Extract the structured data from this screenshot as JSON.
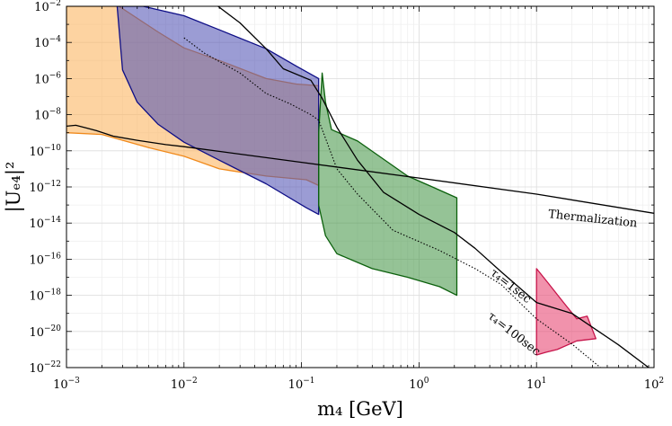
{
  "chart_data": {
    "type": "area",
    "xscale": "log",
    "yscale": "log",
    "xlim": [
      0.001,
      100
    ],
    "ylim": [
      1e-22,
      0.01
    ],
    "grid": true,
    "xlabel": "m₄ [GeV]",
    "ylabel": "|Uₑ₄|²",
    "xticks": [
      {
        "value": 0.001,
        "base": "10",
        "exp": "−3"
      },
      {
        "value": 0.01,
        "base": "10",
        "exp": "−2"
      },
      {
        "value": 0.1,
        "base": "10",
        "exp": "−1"
      },
      {
        "value": 1,
        "base": "10",
        "exp": "0"
      },
      {
        "value": 10,
        "base": "10",
        "exp": "1"
      },
      {
        "value": 100,
        "base": "10",
        "exp": "2"
      }
    ],
    "yticks": [
      {
        "value": 1e-22,
        "base": "10",
        "exp": "−22"
      },
      {
        "value": 1e-20,
        "base": "10",
        "exp": "−20"
      },
      {
        "value": 1e-18,
        "base": "10",
        "exp": "−18"
      },
      {
        "value": 1e-16,
        "base": "10",
        "exp": "−16"
      },
      {
        "value": 1e-14,
        "base": "10",
        "exp": "−14"
      },
      {
        "value": 1e-12,
        "base": "10",
        "exp": "−12"
      },
      {
        "value": 1e-10,
        "base": "10",
        "exp": "−10"
      },
      {
        "value": 1e-08,
        "base": "10",
        "exp": "−8"
      },
      {
        "value": 1e-06,
        "base": "10",
        "exp": "−6"
      },
      {
        "value": 0.0001,
        "base": "10",
        "exp": "−4"
      },
      {
        "value": 0.01,
        "base": "10",
        "exp": "−2"
      }
    ],
    "regions": [
      {
        "id": "orange",
        "fill": "#fcb562",
        "stroke": "#f08a1c",
        "opacity": 0.6,
        "points": [
          [
            0.001,
            1e-09
          ],
          [
            0.001,
            0.01
          ],
          [
            0.0028,
            0.01
          ],
          [
            0.006,
            0.00038
          ],
          [
            0.01,
            5e-05
          ],
          [
            0.02,
            1e-05
          ],
          [
            0.05,
            1e-06
          ],
          [
            0.09,
            5e-07
          ],
          [
            0.14,
            4e-07
          ],
          [
            0.14,
            1.2e-12
          ],
          [
            0.11,
            2.5e-12
          ],
          [
            0.05,
            4e-12
          ],
          [
            0.02,
            1e-11
          ],
          [
            0.01,
            5e-11
          ],
          [
            0.005,
            1.5e-10
          ],
          [
            0.002,
            8e-10
          ]
        ]
      },
      {
        "id": "blue",
        "fill": "#5255b5",
        "stroke": "#0e0e86",
        "opacity": 0.58,
        "points": [
          [
            0.0027,
            0.01
          ],
          [
            0.0045,
            0.01
          ],
          [
            0.01,
            0.003
          ],
          [
            0.02,
            0.0005
          ],
          [
            0.05,
            4.5e-05
          ],
          [
            0.09,
            5e-06
          ],
          [
            0.14,
            1e-06
          ],
          [
            0.14,
            3e-14
          ],
          [
            0.11,
            7e-14
          ],
          [
            0.05,
            1.5e-12
          ],
          [
            0.02,
            3e-11
          ],
          [
            0.01,
            3e-10
          ],
          [
            0.006,
            3e-09
          ],
          [
            0.004,
            5e-08
          ],
          [
            0.003,
            3e-06
          ]
        ]
      },
      {
        "id": "green",
        "fill": "#48984a",
        "stroke": "#0b600c",
        "opacity": 0.58,
        "points": [
          [
            0.14,
            1e-13
          ],
          [
            0.14,
            1e-09
          ],
          [
            0.15,
            2e-06
          ],
          [
            0.16,
            5e-08
          ],
          [
            0.18,
            1.5e-09
          ],
          [
            0.3,
            3.5e-10
          ],
          [
            0.8,
            4e-12
          ],
          [
            1.3,
            1e-12
          ],
          [
            2.1,
            2.5e-13
          ],
          [
            2.1,
            1e-18
          ],
          [
            1.5,
            3e-18
          ],
          [
            0.8,
            1e-17
          ],
          [
            0.4,
            3e-17
          ],
          [
            0.2,
            2e-16
          ],
          [
            0.16,
            2e-15
          ]
        ]
      },
      {
        "id": "pink",
        "fill": "#e84a74",
        "stroke": "#c7144a",
        "opacity": 0.6,
        "points": [
          [
            10,
            9e-20
          ],
          [
            10,
            3e-17
          ],
          [
            12.5,
            5e-18
          ],
          [
            17,
            4e-19
          ],
          [
            22,
            5e-20
          ],
          [
            27,
            7e-20
          ],
          [
            32,
            4e-21
          ],
          [
            22,
            3e-21
          ],
          [
            15,
            1e-21
          ],
          [
            12,
            7e-22
          ],
          [
            10,
            5e-22
          ]
        ]
      }
    ],
    "curves": [
      {
        "id": "thermalization",
        "style": "solid",
        "points": [
          [
            0.001,
            2.3e-09
          ],
          [
            0.0012,
            2.6e-09
          ],
          [
            0.0015,
            1.8e-09
          ],
          [
            0.0018,
            1.3e-09
          ],
          [
            0.0025,
            6.5e-10
          ],
          [
            0.004,
            3.8e-10
          ],
          [
            0.007,
            2.2e-10
          ],
          [
            0.01,
            1.7e-10
          ],
          [
            0.1,
            2.3e-11
          ],
          [
            1,
            3.1e-12
          ],
          [
            10,
            4e-13
          ],
          [
            100,
            3.5e-14
          ]
        ]
      },
      {
        "id": "tau-1sec",
        "style": "solid",
        "points": [
          [
            0.0195,
            0.01
          ],
          [
            0.03,
            0.0012
          ],
          [
            0.05,
            4.5e-05
          ],
          [
            0.07,
            3.5e-06
          ],
          [
            0.12,
            8e-07
          ],
          [
            0.15,
            8e-08
          ],
          [
            0.2,
            2e-09
          ],
          [
            0.3,
            3e-11
          ],
          [
            0.5,
            5e-13
          ],
          [
            1,
            3e-14
          ],
          [
            2,
            3e-15
          ],
          [
            3,
            4e-16
          ],
          [
            5,
            2e-17
          ],
          [
            10,
            4e-19
          ],
          [
            20,
            1e-19
          ],
          [
            50,
            1.8e-21
          ],
          [
            90,
            1e-22
          ]
        ]
      },
      {
        "id": "tau-100sec",
        "style": "dotted",
        "points": [
          [
            0.01,
            0.00018
          ],
          [
            0.015,
            2.5e-05
          ],
          [
            0.03,
            2e-06
          ],
          [
            0.05,
            1.5e-07
          ],
          [
            0.08,
            4e-08
          ],
          [
            0.12,
            1e-08
          ],
          [
            0.14,
            5e-09
          ],
          [
            0.16,
            5e-10
          ],
          [
            0.2,
            1e-11
          ],
          [
            0.3,
            4e-13
          ],
          [
            0.6,
            4e-15
          ],
          [
            1.5,
            3e-16
          ],
          [
            3,
            3e-17
          ],
          [
            5,
            4e-18
          ],
          [
            10,
            5e-20
          ],
          [
            20,
            2e-21
          ],
          [
            35,
            1e-22
          ]
        ]
      }
    ],
    "annotations": [
      {
        "id": "thermalization",
        "text": "Thermalization",
        "x": 12.5,
        "y": 2e-14,
        "angle": 6
      },
      {
        "id": "tau-1sec",
        "text": "τ₄=1sec",
        "x": 4.0,
        "y": 1.5e-17,
        "angle": 38
      },
      {
        "id": "tau-100sec",
        "text": "τ₄=100sec",
        "x": 3.8,
        "y": 6e-20,
        "angle": 38
      }
    ]
  }
}
